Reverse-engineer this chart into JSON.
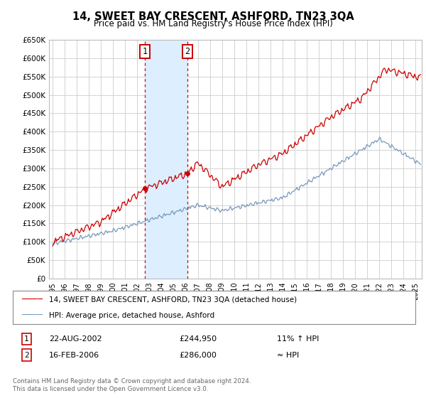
{
  "title": "14, SWEET BAY CRESCENT, ASHFORD, TN23 3QA",
  "subtitle": "Price paid vs. HM Land Registry's House Price Index (HPI)",
  "ylim": [
    0,
    650000
  ],
  "yticks": [
    0,
    50000,
    100000,
    150000,
    200000,
    250000,
    300000,
    350000,
    400000,
    450000,
    500000,
    550000,
    600000,
    650000
  ],
  "ytick_labels": [
    "£0",
    "£50K",
    "£100K",
    "£150K",
    "£200K",
    "£250K",
    "£300K",
    "£350K",
    "£400K",
    "£450K",
    "£500K",
    "£550K",
    "£600K",
    "£650K"
  ],
  "xlim_left": 1994.7,
  "xlim_right": 2025.5,
  "xticks": [
    1995,
    1996,
    1997,
    1998,
    1999,
    2000,
    2001,
    2002,
    2003,
    2004,
    2005,
    2006,
    2007,
    2008,
    2009,
    2010,
    2011,
    2012,
    2013,
    2014,
    2015,
    2016,
    2017,
    2018,
    2019,
    2020,
    2021,
    2022,
    2023,
    2024,
    2025
  ],
  "transaction1_x": 2002.64,
  "transaction1_y": 244950,
  "transaction1_label": "1",
  "transaction1_date": "22-AUG-2002",
  "transaction1_price": "£244,950",
  "transaction1_hpi": "11% ↑ HPI",
  "transaction2_x": 2006.12,
  "transaction2_y": 286000,
  "transaction2_label": "2",
  "transaction2_date": "16-FEB-2006",
  "transaction2_price": "£286,000",
  "transaction2_hpi": "≈ HPI",
  "line1_color": "#cc0000",
  "line2_color": "#7799bb",
  "shade_color": "#ddeeff",
  "grid_color": "#cccccc",
  "bg_color": "#ffffff",
  "legend_line1": "14, SWEET BAY CRESCENT, ASHFORD, TN23 3QA (detached house)",
  "legend_line2": "HPI: Average price, detached house, Ashford",
  "footer": "Contains HM Land Registry data © Crown copyright and database right 2024.\nThis data is licensed under the Open Government Licence v3.0."
}
